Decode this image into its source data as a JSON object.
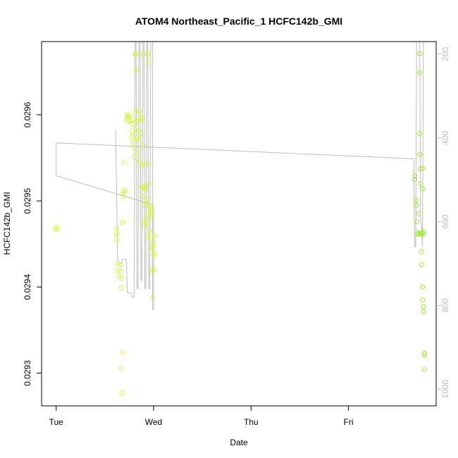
{
  "chart_data": {
    "type": "scatter",
    "title": "ATOM4 Northeast_Pacific_1 HCFC142b_GMI",
    "xlabel": "Date",
    "ylabel": "HCFC142b_GMI",
    "x_ticks": [
      {
        "label": "Tue",
        "value": 0
      },
      {
        "label": "Wed",
        "value": 1
      },
      {
        "label": "Thu",
        "value": 2
      },
      {
        "label": "Fri",
        "value": 3
      }
    ],
    "xlim": [
      -0.15,
      3.9
    ],
    "y_ticks": [
      {
        "label": "0.0293",
        "value": 0.0293
      },
      {
        "label": "0.0294",
        "value": 0.0294
      },
      {
        "label": "0.0295",
        "value": 0.0295
      },
      {
        "label": "0.0296",
        "value": 0.0296
      }
    ],
    "ylim": [
      0.029262,
      0.029685
    ],
    "y2_ticks": [
      {
        "label": "200",
        "value": 200
      },
      {
        "label": "400",
        "value": 400
      },
      {
        "label": "600",
        "value": 600
      },
      {
        "label": "800",
        "value": 800
      },
      {
        "label": "1000",
        "value": 1000
      }
    ],
    "y2lim": [
      1040,
      170
    ],
    "grid": false,
    "colors": {
      "points_early": "#ccff33",
      "points_late": "#99ee33",
      "pressure_line": "#bdbdbd",
      "axis": "#000000",
      "right_axis_text": "#bdbdbd"
    },
    "series": [
      {
        "role": "points",
        "points": [
          [
            0.0,
            0.029467
          ],
          [
            0.0,
            0.02947
          ],
          [
            0.62,
            0.029462
          ],
          [
            0.62,
            0.029455
          ],
          [
            0.62,
            0.029468
          ],
          [
            0.63,
            0.029427
          ],
          [
            0.63,
            0.029419
          ],
          [
            0.64,
            0.029412
          ],
          [
            0.66,
            0.029426
          ],
          [
            0.66,
            0.029418
          ],
          [
            0.67,
            0.02941
          ],
          [
            0.67,
            0.029399
          ],
          [
            0.67,
            0.029306
          ],
          [
            0.68,
            0.029324
          ],
          [
            0.68,
            0.029277
          ],
          [
            0.68,
            0.029475
          ],
          [
            0.69,
            0.029509
          ],
          [
            0.69,
            0.029512
          ],
          [
            0.69,
            0.029505
          ],
          [
            0.7,
            0.029545
          ],
          [
            0.71,
            0.029512
          ],
          [
            0.72,
            0.029594
          ],
          [
            0.73,
            0.029597
          ],
          [
            0.73,
            0.0296
          ],
          [
            0.74,
            0.029599
          ],
          [
            0.75,
            0.029592
          ],
          [
            0.75,
            0.029598
          ],
          [
            0.76,
            0.029593
          ],
          [
            0.77,
            0.02959
          ],
          [
            0.78,
            0.029575
          ],
          [
            0.78,
            0.029581
          ],
          [
            0.79,
            0.029563
          ],
          [
            0.79,
            0.029569
          ],
          [
            0.8,
            0.029551
          ],
          [
            0.8,
            0.029585
          ],
          [
            0.81,
            0.029603
          ],
          [
            0.81,
            0.029671
          ],
          [
            0.82,
            0.02967
          ],
          [
            0.82,
            0.029652
          ],
          [
            0.82,
            0.029593
          ],
          [
            0.83,
            0.029571
          ],
          [
            0.83,
            0.029556
          ],
          [
            0.84,
            0.029593
          ],
          [
            0.84,
            0.029573
          ],
          [
            0.85,
            0.029582
          ],
          [
            0.85,
            0.029546
          ],
          [
            0.86,
            0.029604
          ],
          [
            0.86,
            0.029578
          ],
          [
            0.87,
            0.029596
          ],
          [
            0.87,
            0.029542
          ],
          [
            0.88,
            0.029516
          ],
          [
            0.88,
            0.029505
          ],
          [
            0.89,
            0.02967
          ],
          [
            0.89,
            0.029596
          ],
          [
            0.89,
            0.029565
          ],
          [
            0.9,
            0.029495
          ],
          [
            0.9,
            0.029478
          ],
          [
            0.91,
            0.029472
          ],
          [
            0.91,
            0.029541
          ],
          [
            0.91,
            0.029516
          ],
          [
            0.92,
            0.029513
          ],
          [
            0.92,
            0.029498
          ],
          [
            0.93,
            0.029484
          ],
          [
            0.93,
            0.029474
          ],
          [
            0.94,
            0.029502
          ],
          [
            0.94,
            0.029459
          ],
          [
            0.94,
            0.02967
          ],
          [
            0.95,
            0.029661
          ],
          [
            0.95,
            0.029543
          ],
          [
            0.95,
            0.02952
          ],
          [
            0.96,
            0.029492
          ],
          [
            0.96,
            0.029479
          ],
          [
            0.96,
            0.029466
          ],
          [
            0.97,
            0.029454
          ],
          [
            0.97,
            0.029445
          ],
          [
            0.97,
            0.029491
          ],
          [
            0.98,
            0.029494
          ],
          [
            0.98,
            0.029486
          ],
          [
            0.98,
            0.029485
          ],
          [
            0.99,
            0.029446
          ],
          [
            0.99,
            0.029419
          ],
          [
            0.99,
            0.029388
          ],
          [
            1.0,
            0.029421
          ],
          [
            1.0,
            0.029437
          ],
          [
            1.0,
            0.02945
          ],
          [
            1.01,
            0.029459
          ],
          [
            1.01,
            0.029439
          ]
        ]
      },
      {
        "role": "points",
        "points": [
          [
            3.68,
            0.029529
          ],
          [
            3.68,
            0.029525
          ],
          [
            3.69,
            0.029501
          ],
          [
            3.7,
            0.029495
          ],
          [
            3.7,
            0.029476
          ],
          [
            3.71,
            0.029463
          ],
          [
            3.71,
            0.029461
          ],
          [
            3.72,
            0.029485
          ],
          [
            3.72,
            0.029462
          ],
          [
            3.73,
            0.029671
          ],
          [
            3.73,
            0.029649
          ],
          [
            3.73,
            0.029578
          ],
          [
            3.73,
            0.029554
          ],
          [
            3.74,
            0.029537
          ],
          [
            3.74,
            0.02952
          ],
          [
            3.74,
            0.029462
          ],
          [
            3.75,
            0.029463
          ],
          [
            3.75,
            0.029441
          ],
          [
            3.75,
            0.029426
          ],
          [
            3.76,
            0.0294
          ],
          [
            3.76,
            0.029385
          ],
          [
            3.77,
            0.029377
          ],
          [
            3.77,
            0.029372
          ],
          [
            3.78,
            0.029323
          ],
          [
            3.78,
            0.029321
          ],
          [
            3.78,
            0.029304
          ],
          [
            3.77,
            0.029464
          ],
          [
            3.77,
            0.029462
          ],
          [
            3.76,
            0.029538
          ],
          [
            3.76,
            0.029514
          ]
        ]
      },
      {
        "role": "pressure-line",
        "axis": "right",
        "points": [
          [
            0.0,
            412
          ],
          [
            0.0,
            490
          ],
          [
            0.02,
            492
          ],
          [
            1.0,
            560
          ],
          [
            1.0,
            810
          ],
          [
            0.99,
            810
          ],
          [
            0.99,
            120
          ],
          [
            0.98,
            120
          ],
          [
            0.97,
            180
          ],
          [
            0.96,
            760
          ],
          [
            0.95,
            760
          ],
          [
            0.94,
            170
          ],
          [
            0.93,
            170
          ],
          [
            0.92,
            760
          ],
          [
            0.91,
            760
          ],
          [
            0.9,
            120
          ],
          [
            0.89,
            120
          ],
          [
            0.88,
            740
          ],
          [
            0.87,
            740
          ],
          [
            0.86,
            120
          ],
          [
            0.85,
            120
          ],
          [
            0.84,
            760
          ],
          [
            0.83,
            760
          ],
          [
            0.82,
            170
          ],
          [
            0.81,
            170
          ],
          [
            0.8,
            780
          ],
          [
            0.78,
            780
          ],
          [
            0.77,
            770
          ],
          [
            0.73,
            770
          ],
          [
            0.72,
            690
          ],
          [
            0.68,
            690
          ],
          [
            0.67,
            700
          ],
          [
            0.65,
            700
          ],
          [
            0.63,
            690
          ],
          [
            0.61,
            380
          ],
          [
            0.61,
            380
          ]
        ]
      },
      {
        "role": "pressure-line-2",
        "axis": "right",
        "points": [
          [
            0.0,
            412
          ],
          [
            3.67,
            450
          ],
          [
            3.68,
            660
          ],
          [
            3.69,
            660
          ],
          [
            3.7,
            120
          ],
          [
            3.72,
            120
          ],
          [
            3.73,
            120
          ],
          [
            3.74,
            600
          ],
          [
            3.75,
            610
          ],
          [
            3.76,
            660
          ],
          [
            3.77,
            120
          ]
        ]
      }
    ]
  }
}
